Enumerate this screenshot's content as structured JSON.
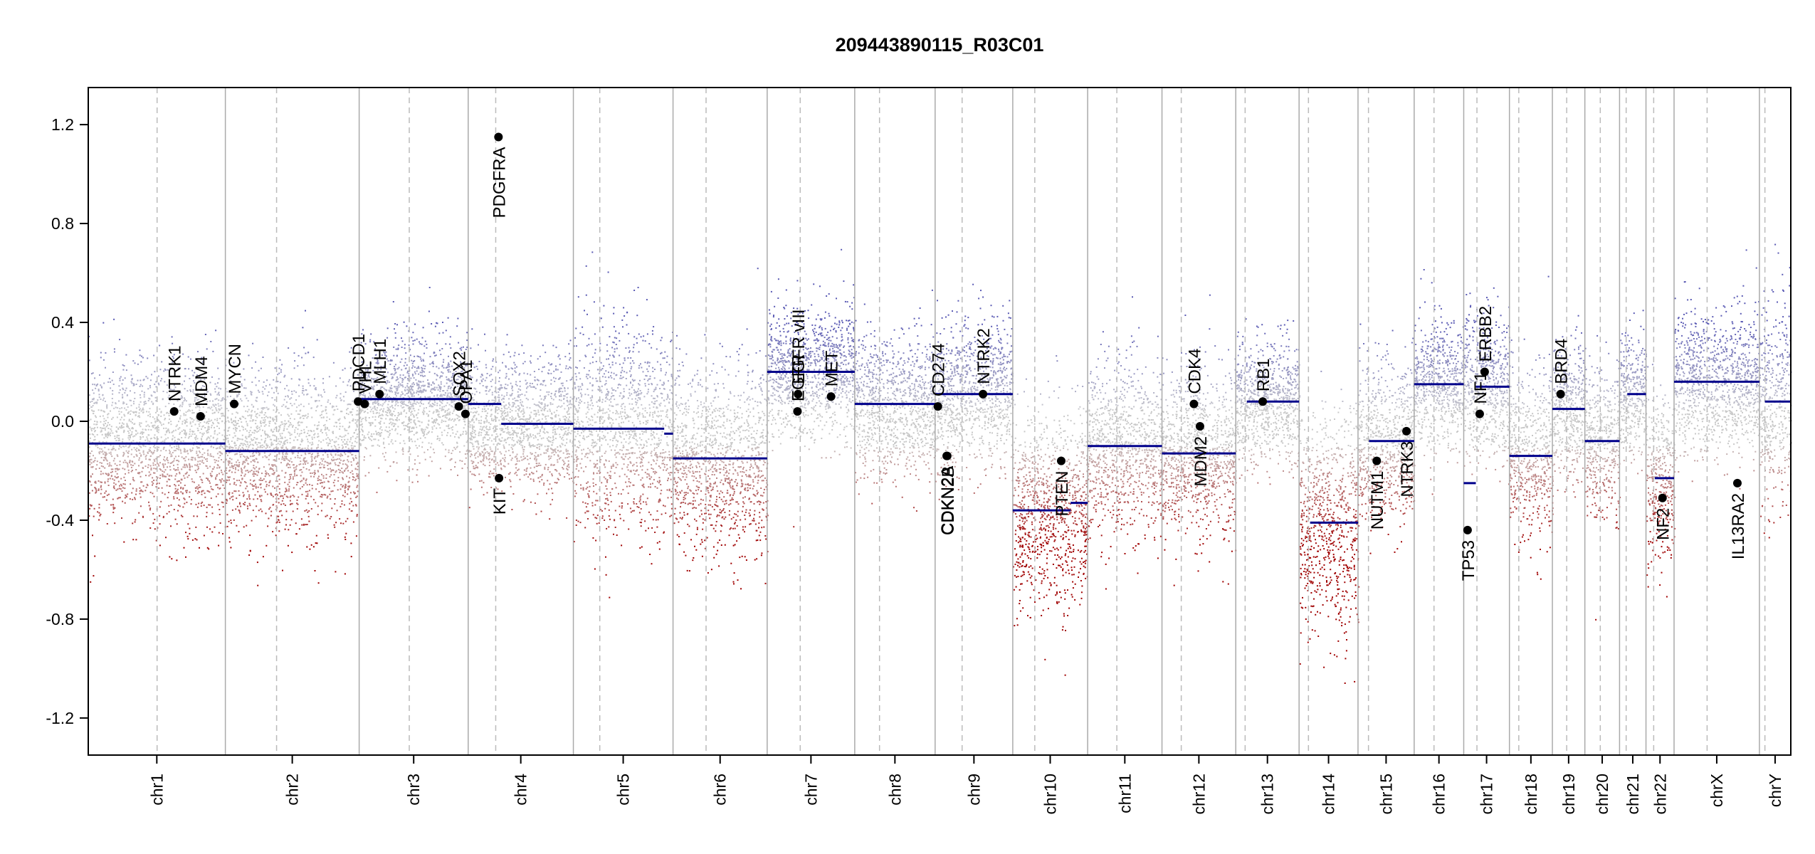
{
  "chart_data": {
    "type": "scatter",
    "title": "209443890115_R03C01",
    "xlabel": "",
    "ylabel": "",
    "ylim": [
      -1.35,
      1.35
    ],
    "yticks": [
      -1.2,
      -0.8,
      -0.4,
      0.0,
      0.4,
      0.8,
      1.2
    ],
    "ytick_labels": [
      "-1.2",
      "-0.8",
      "-0.4",
      "0.0",
      "0.4",
      "0.8",
      "1.2"
    ],
    "grid": false,
    "colors": {
      "gain": "#5a5ab4",
      "neutral": "#bdbdbd",
      "loss": "#a00000",
      "segment": "#00008b",
      "gene_point": "#000000"
    },
    "chromosomes": [
      {
        "name": "chr1",
        "length": 249,
        "centromere": 125,
        "segments": [
          {
            "start": 0,
            "end": 249,
            "value": -0.09
          }
        ]
      },
      {
        "name": "chr2",
        "length": 243,
        "centromere": 93,
        "segments": [
          {
            "start": 0,
            "end": 243,
            "value": -0.12
          }
        ]
      },
      {
        "name": "chr3",
        "length": 198,
        "centromere": 91,
        "segments": [
          {
            "start": 0,
            "end": 198,
            "value": 0.09
          }
        ]
      },
      {
        "name": "chr4",
        "length": 191,
        "centromere": 50,
        "segments": [
          {
            "start": 0,
            "end": 60,
            "value": 0.07
          },
          {
            "start": 60,
            "end": 191,
            "value": -0.01
          }
        ]
      },
      {
        "name": "chr5",
        "length": 181,
        "centromere": 48,
        "segments": [
          {
            "start": 0,
            "end": 165,
            "value": -0.03
          },
          {
            "start": 165,
            "end": 181,
            "value": -0.05
          }
        ]
      },
      {
        "name": "chr6",
        "length": 171,
        "centromere": 60,
        "segments": [
          {
            "start": 0,
            "end": 171,
            "value": -0.15
          }
        ]
      },
      {
        "name": "chr7",
        "length": 159,
        "centromere": 60,
        "segments": [
          {
            "start": 0,
            "end": 159,
            "value": 0.2
          }
        ]
      },
      {
        "name": "chr8",
        "length": 146,
        "centromere": 45,
        "segments": [
          {
            "start": 0,
            "end": 146,
            "value": 0.07
          }
        ]
      },
      {
        "name": "chr9",
        "length": 141,
        "centromere": 49,
        "segments": [
          {
            "start": 0,
            "end": 141,
            "value": 0.11
          }
        ]
      },
      {
        "name": "chr10",
        "length": 136,
        "centromere": 40,
        "segments": [
          {
            "start": 0,
            "end": 105,
            "value": -0.36
          },
          {
            "start": 105,
            "end": 136,
            "value": -0.33
          }
        ]
      },
      {
        "name": "chr11",
        "length": 135,
        "centromere": 53,
        "segments": [
          {
            "start": 0,
            "end": 135,
            "value": -0.1
          }
        ]
      },
      {
        "name": "chr12",
        "length": 134,
        "centromere": 35,
        "segments": [
          {
            "start": 0,
            "end": 134,
            "value": -0.13
          }
        ]
      },
      {
        "name": "chr13",
        "length": 115,
        "centromere": 17,
        "segments": [
          {
            "start": 20,
            "end": 115,
            "value": 0.08
          }
        ]
      },
      {
        "name": "chr14",
        "length": 107,
        "centromere": 17,
        "segments": [
          {
            "start": 20,
            "end": 107,
            "value": -0.41
          }
        ]
      },
      {
        "name": "chr15",
        "length": 102,
        "centromere": 19,
        "segments": [
          {
            "start": 20,
            "end": 102,
            "value": -0.08
          }
        ]
      },
      {
        "name": "chr16",
        "length": 90,
        "centromere": 36,
        "segments": [
          {
            "start": 0,
            "end": 90,
            "value": 0.15
          }
        ]
      },
      {
        "name": "chr17",
        "length": 83,
        "centromere": 24,
        "segments": [
          {
            "start": 0,
            "end": 22,
            "value": -0.25
          },
          {
            "start": 22,
            "end": 83,
            "value": 0.14
          }
        ]
      },
      {
        "name": "chr18",
        "length": 78,
        "centromere": 17,
        "segments": [
          {
            "start": 0,
            "end": 78,
            "value": -0.14
          }
        ]
      },
      {
        "name": "chr19",
        "length": 59,
        "centromere": 26,
        "segments": [
          {
            "start": 0,
            "end": 59,
            "value": 0.05
          }
        ]
      },
      {
        "name": "chr20",
        "length": 63,
        "centromere": 28,
        "segments": [
          {
            "start": 0,
            "end": 63,
            "value": -0.08
          }
        ]
      },
      {
        "name": "chr21",
        "length": 48,
        "centromere": 12,
        "segments": [
          {
            "start": 14,
            "end": 48,
            "value": 0.11
          }
        ]
      },
      {
        "name": "chr22",
        "length": 51,
        "centromere": 14,
        "segments": [
          {
            "start": 16,
            "end": 51,
            "value": -0.23
          }
        ]
      },
      {
        "name": "chrX",
        "length": 155,
        "centromere": 60,
        "segments": [
          {
            "start": 0,
            "end": 155,
            "value": 0.16
          }
        ]
      },
      {
        "name": "chrY",
        "length": 57,
        "centromere": 10,
        "segments": [
          {
            "start": 10,
            "end": 57,
            "value": 0.08
          }
        ]
      }
    ],
    "genes": [
      {
        "name": "NTRK1",
        "chr": "chr1",
        "pos": 156,
        "value": 0.04,
        "label_side": "above"
      },
      {
        "name": "MDM4",
        "chr": "chr1",
        "pos": 204,
        "value": 0.02,
        "label_side": "above"
      },
      {
        "name": "MYCN",
        "chr": "chr2",
        "pos": 16,
        "value": 0.07,
        "label_side": "above"
      },
      {
        "name": "PDCD1",
        "chr": "chr2",
        "pos": 241,
        "value": 0.08,
        "label_side": "above"
      },
      {
        "name": "VHL",
        "chr": "chr3",
        "pos": 10,
        "value": 0.07,
        "label_side": "above"
      },
      {
        "name": "MLH1",
        "chr": "chr3",
        "pos": 37,
        "value": 0.11,
        "label_side": "above"
      },
      {
        "name": "SOX2",
        "chr": "chr3",
        "pos": 181,
        "value": 0.06,
        "label_side": "above"
      },
      {
        "name": "OPA1",
        "chr": "chr3",
        "pos": 193,
        "value": 0.03,
        "label_side": "above"
      },
      {
        "name": "PDGFRA",
        "chr": "chr4",
        "pos": 55,
        "value": 1.15,
        "label_side": "below"
      },
      {
        "name": "KIT",
        "chr": "chr4",
        "pos": 56,
        "value": -0.23,
        "label_side": "below"
      },
      {
        "name": "EGFR",
        "chr": "chr7",
        "pos": 55,
        "value": 0.04,
        "label_side": "above"
      },
      {
        "name": "EGFR vIII",
        "chr": "chr7",
        "pos": 56,
        "value": 0.11,
        "label_side": "above"
      },
      {
        "name": "MET",
        "chr": "chr7",
        "pos": 116,
        "value": 0.1,
        "label_side": "above"
      },
      {
        "name": "CD274",
        "chr": "chr9",
        "pos": 5,
        "value": 0.06,
        "label_side": "above"
      },
      {
        "name": "CDKN2A",
        "chr": "chr9",
        "pos": 21,
        "value": -0.14,
        "label_side": "below"
      },
      {
        "name": "CDKN2B",
        "chr": "chr9",
        "pos": 22,
        "value": -0.14,
        "label_side": "below"
      },
      {
        "name": "NTRK2",
        "chr": "chr9",
        "pos": 87,
        "value": 0.11,
        "label_side": "above"
      },
      {
        "name": "PTEN",
        "chr": "chr10",
        "pos": 88,
        "value": -0.16,
        "label_side": "below"
      },
      {
        "name": "CDK4",
        "chr": "chr12",
        "pos": 58,
        "value": 0.07,
        "label_side": "above"
      },
      {
        "name": "MDM2",
        "chr": "chr12",
        "pos": 69,
        "value": -0.02,
        "label_side": "below"
      },
      {
        "name": "RB1",
        "chr": "chr13",
        "pos": 49,
        "value": 0.08,
        "label_side": "above"
      },
      {
        "name": "NUTM1",
        "chr": "chr15",
        "pos": 34,
        "value": -0.16,
        "label_side": "below"
      },
      {
        "name": "NTRK3",
        "chr": "chr15",
        "pos": 88,
        "value": -0.04,
        "label_side": "below"
      },
      {
        "name": "TP53",
        "chr": "chr17",
        "pos": 7,
        "value": -0.44,
        "label_side": "below"
      },
      {
        "name": "NF1",
        "chr": "chr17",
        "pos": 29,
        "value": 0.03,
        "label_side": "above"
      },
      {
        "name": "ERBB2",
        "chr": "chr17",
        "pos": 38,
        "value": 0.2,
        "label_side": "above"
      },
      {
        "name": "BRD4",
        "chr": "chr19",
        "pos": 15,
        "value": 0.11,
        "label_side": "above"
      },
      {
        "name": "NF2",
        "chr": "chr22",
        "pos": 30,
        "value": -0.31,
        "label_side": "below"
      },
      {
        "name": "IL13RA2",
        "chr": "chrX",
        "pos": 115,
        "value": -0.25,
        "label_side": "below"
      }
    ],
    "regions": [
      {
        "chr": "chr1",
        "mean": -0.09,
        "sd": 0.16
      },
      {
        "chr": "chr2",
        "mean": -0.12,
        "sd": 0.16
      },
      {
        "chr": "chr3",
        "mean": 0.09,
        "sd": 0.12
      },
      {
        "chr": "chr4",
        "mean": -0.01,
        "sd": 0.13
      },
      {
        "chr": "chr5",
        "mean": -0.03,
        "sd": 0.2
      },
      {
        "chr": "chr6",
        "mean": -0.15,
        "sd": 0.18
      },
      {
        "chr": "chr7",
        "mean": 0.2,
        "sd": 0.13
      },
      {
        "chr": "chr8",
        "mean": 0.07,
        "sd": 0.14
      },
      {
        "chr": "chr9",
        "mean": 0.11,
        "sd": 0.14
      },
      {
        "chr": "chr10",
        "mean": -0.36,
        "sd": 0.2
      },
      {
        "chr": "chr11",
        "mean": -0.1,
        "sd": 0.17
      },
      {
        "chr": "chr12",
        "mean": -0.13,
        "sd": 0.17
      },
      {
        "chr": "chr13",
        "mean": 0.08,
        "sd": 0.12
      },
      {
        "chr": "chr14",
        "mean": -0.41,
        "sd": 0.22
      },
      {
        "chr": "chr15",
        "mean": -0.08,
        "sd": 0.16
      },
      {
        "chr": "chr16",
        "mean": 0.15,
        "sd": 0.13
      },
      {
        "chr": "chr17",
        "mean": 0.14,
        "sd": 0.14
      },
      {
        "chr": "chr18",
        "mean": -0.14,
        "sd": 0.17
      },
      {
        "chr": "chr19",
        "mean": 0.05,
        "sd": 0.13
      },
      {
        "chr": "chr20",
        "mean": -0.08,
        "sd": 0.15
      },
      {
        "chr": "chr21",
        "mean": 0.11,
        "sd": 0.12
      },
      {
        "chr": "chr22",
        "mean": -0.23,
        "sd": 0.18
      },
      {
        "chr": "chrX",
        "mean": 0.16,
        "sd": 0.14
      },
      {
        "chr": "chrY",
        "mean": 0.08,
        "sd": 0.2
      }
    ]
  }
}
